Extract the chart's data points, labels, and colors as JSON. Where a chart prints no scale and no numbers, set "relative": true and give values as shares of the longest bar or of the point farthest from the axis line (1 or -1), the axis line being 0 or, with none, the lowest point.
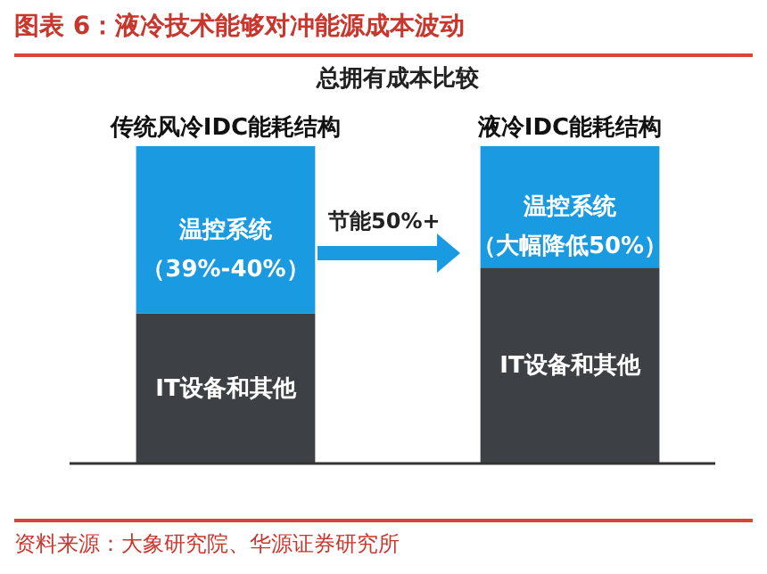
{
  "chart_data": {
    "type": "bar",
    "title": "图表 6：液冷技术能够对冲能源成本波动",
    "subtitle": "总拥有成本比较",
    "relative": true,
    "stacked": true,
    "legend": false,
    "categories": [
      "传统风冷IDC能耗结构",
      "液冷IDC能耗结构"
    ],
    "series": [
      {
        "name": "IT设备和其他",
        "color": "#3d4045",
        "values": [
          0.473,
          0.617
        ]
      },
      {
        "name": "温控系统",
        "color": "#1a9ae0",
        "values": [
          0.527,
          0.383
        ]
      }
    ],
    "annotations": [
      "（39%-40%）",
      "（大幅降低50%）",
      "节能50%+",
      "资料来源：大象研究院、华源证券研究所"
    ]
  }
}
